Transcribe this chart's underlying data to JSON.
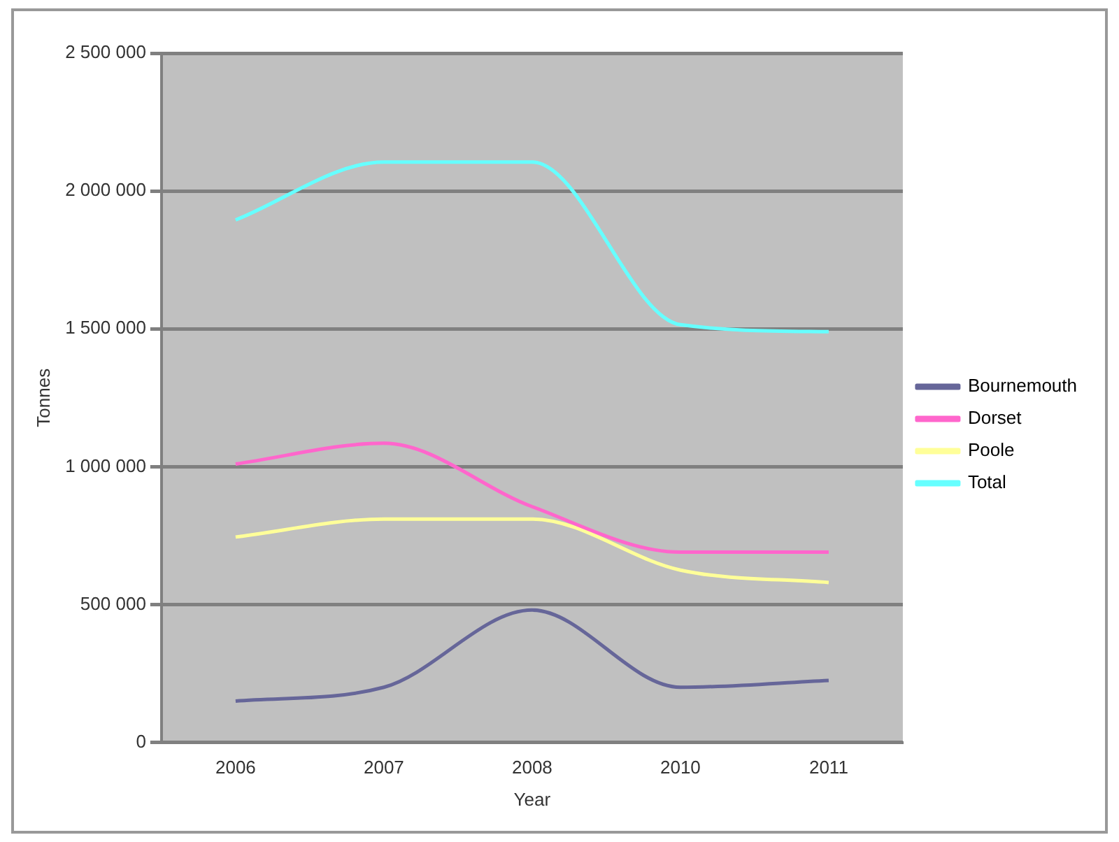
{
  "chart_data": {
    "type": "line",
    "xlabel": "Year",
    "ylabel": "Tonnes",
    "categories": [
      "2006",
      "2007",
      "2008",
      "2010",
      "2011"
    ],
    "series": [
      {
        "name": "Bournemouth",
        "color": "#666699",
        "values": [
          150000,
          200000,
          480000,
          200000,
          225000
        ]
      },
      {
        "name": "Dorset",
        "color": "#ff66cc",
        "values": [
          1010000,
          1085000,
          855000,
          690000,
          690000
        ]
      },
      {
        "name": "Poole",
        "color": "#ffff99",
        "values": [
          745000,
          810000,
          810000,
          625000,
          580000
        ]
      },
      {
        "name": "Total",
        "color": "#66ffff",
        "values": [
          1895000,
          2105000,
          2105000,
          1515000,
          1490000
        ]
      }
    ],
    "ylim": [
      0,
      2500000
    ],
    "yticks": [
      {
        "value": 0,
        "label": "0"
      },
      {
        "value": 500000,
        "label": "500 000"
      },
      {
        "value": 1000000,
        "label": "1 000 000"
      },
      {
        "value": 1500000,
        "label": "1 500 000"
      },
      {
        "value": 2000000,
        "label": "2 000 000"
      },
      {
        "value": 2500000,
        "label": "2 500 000"
      }
    ],
    "grid": "y",
    "legend": "right",
    "marker": "none",
    "line_style": "solid"
  }
}
